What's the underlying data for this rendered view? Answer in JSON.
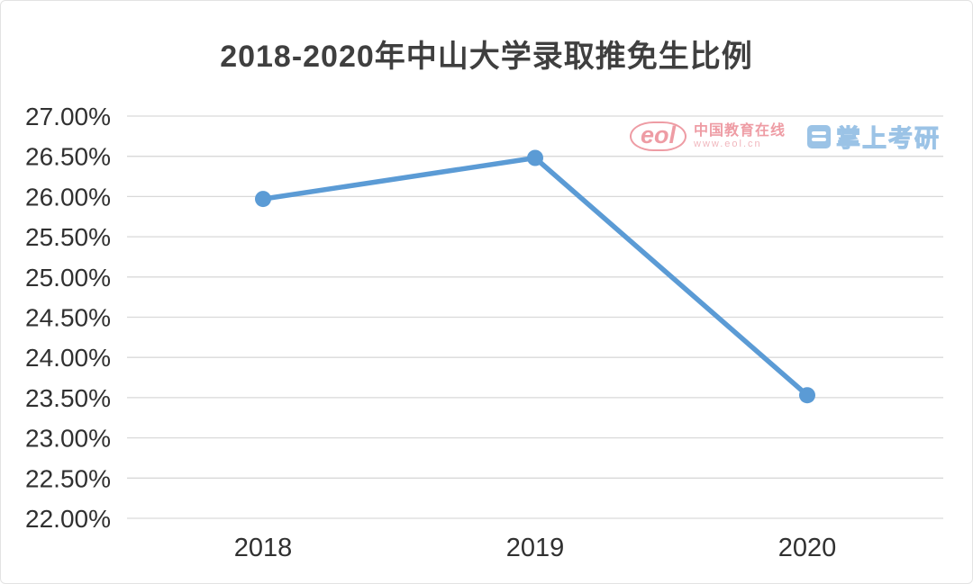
{
  "chart_data": {
    "type": "line",
    "title": "2018-2020年中山大学录取推免生比例",
    "categories": [
      "2018",
      "2019",
      "2020"
    ],
    "series": [
      {
        "name": "录取推免生比例",
        "values": [
          25.97,
          26.48,
          23.53
        ]
      }
    ],
    "ylim": [
      22.0,
      27.0
    ],
    "ytick_step": 0.5,
    "ytick_suffix": "%",
    "ytick_decimals": 2,
    "grid": true,
    "legend_position": "none",
    "line_color": "#5B9BD5",
    "grid_color": "#d9d9d9",
    "axis_label_color": "#303030",
    "marker": "circle"
  },
  "watermark": {
    "eol_logo": "eol",
    "eol_name": "中国教育在线",
    "eol_url": "www.eol.cn",
    "kaoyan_name": "掌上考研",
    "eol_color": "#e4606e",
    "kaoyan_color": "#5e9fd8"
  }
}
